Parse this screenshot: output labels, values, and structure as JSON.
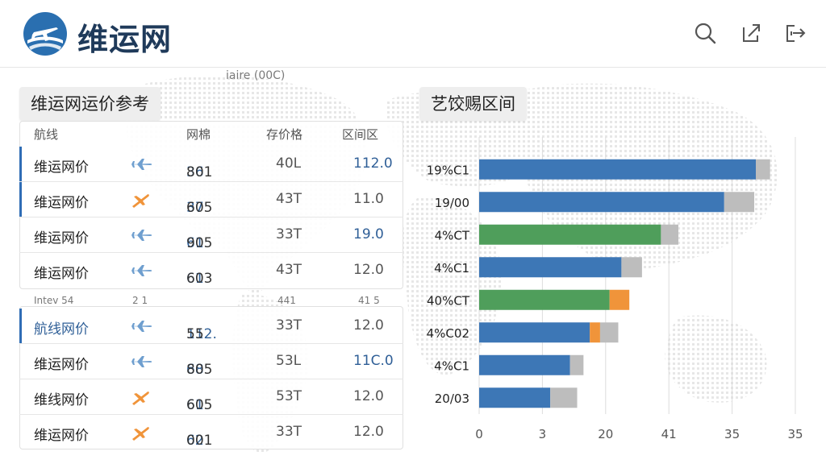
{
  "app": {
    "title": "维运网"
  },
  "header": {
    "icons": [
      "search-icon",
      "export-icon",
      "logout-icon"
    ]
  },
  "caption": "iaire (00C)",
  "left_panel": {
    "title": "维运网运价参考",
    "columns": [
      "航线",
      "网棉",
      "存价格",
      "区间区"
    ],
    "rows": [
      {
        "route": "维运网价",
        "icon": "plane-blue",
        "price_a": "36",
        "price_b": "801",
        "weight": "40L",
        "range": "112.0"
      },
      {
        "route": "维运网价",
        "icon": "plane-orange",
        "price_a": "37",
        "price_b": "605",
        "weight": "43T",
        "range": "11.0"
      },
      {
        "route": "维运网价",
        "icon": "plane-blue",
        "price_a": "61",
        "price_b": "905",
        "weight": "33T",
        "range": "19.0"
      },
      {
        "route": "维运网价",
        "icon": "plane-blue",
        "price_a": "61",
        "price_b": "603",
        "weight": "43T",
        "range": "12.0"
      }
    ],
    "sub_header": [
      "Intev 54",
      "2 1",
      "441",
      "41 5"
    ],
    "rows2": [
      {
        "route": "航线网价",
        "icon": "plane-blue",
        "price_a": "112.",
        "price_b": "55",
        "weight": "33T",
        "range": "12.0"
      },
      {
        "route": "维运网价",
        "icon": "plane-blue",
        "price_a": "68",
        "price_b": "805",
        "weight": "53L",
        "range": "11C.0"
      },
      {
        "route": "维线网价",
        "icon": "plane-orange",
        "price_a": "61",
        "price_b": "605",
        "weight": "53T",
        "range": "12.0"
      },
      {
        "route": "维运网价",
        "icon": "plane-orange",
        "price_a": "62",
        "price_b": "001",
        "weight": "33T",
        "range": "12.0"
      }
    ]
  },
  "right_panel": {
    "title": "艺饺赐区间"
  },
  "chart_data": {
    "type": "bar",
    "orientation": "horizontal",
    "categories": [
      "19%C1",
      "19/00",
      "4%CT",
      "4%C1",
      "40%CT",
      "4%C02",
      "4%C1",
      "20/03"
    ],
    "x_tick_labels": [
      "0",
      "3",
      "20",
      "41",
      "35",
      "35"
    ],
    "series": [
      {
        "values": [
          35,
          31,
          23,
          18,
          16.5,
          14,
          11.5,
          9
        ],
        "colors": [
          "#3d77b6",
          "#3d77b6",
          "#4f9e5b",
          "#3d77b6",
          "#4f9e5b",
          "#3d77b6",
          "#3d77b6",
          "#3d77b6"
        ]
      },
      {
        "values": [
          0,
          0,
          0,
          0,
          2.5,
          1.3,
          0,
          0
        ],
        "color": "#f0943a"
      },
      {
        "values": [
          1.8,
          3.8,
          2.2,
          2.6,
          0,
          2.3,
          1.7,
          3.4
        ],
        "color": "#bdbdbd"
      }
    ],
    "xlim": [
      0,
      40
    ],
    "grid": true
  }
}
